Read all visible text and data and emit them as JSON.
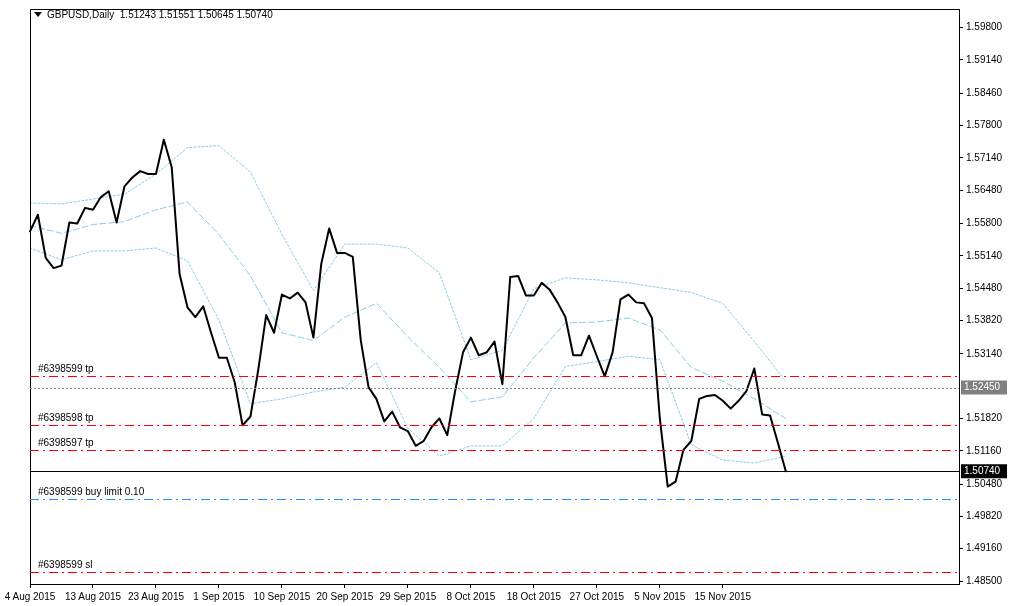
{
  "chart_data": {
    "type": "line",
    "title": "GBPUSD,Daily  1.51243 1.51551 1.50645 1.50740",
    "categories": [
      "4 Aug 2015",
      null,
      null,
      null,
      null,
      null,
      null,
      null,
      "13 Aug 2015",
      null,
      null,
      null,
      null,
      null,
      null,
      null,
      "23 Aug 2015",
      null,
      null,
      null,
      null,
      null,
      null,
      null,
      "1 Sep 2015",
      null,
      null,
      null,
      null,
      null,
      null,
      null,
      "10 Sep 2015",
      null,
      null,
      null,
      null,
      null,
      null,
      null,
      "20 Sep 2015",
      null,
      null,
      null,
      null,
      null,
      null,
      null,
      "29 Sep 2015",
      null,
      null,
      null,
      null,
      null,
      null,
      null,
      "8 Oct 2015",
      null,
      null,
      null,
      null,
      null,
      null,
      null,
      "18 Oct 2015",
      null,
      null,
      null,
      null,
      null,
      null,
      null,
      "27 Oct 2015",
      null,
      null,
      null,
      null,
      null,
      null,
      null,
      "5 Nov 2015",
      null,
      null,
      null,
      null,
      null,
      null,
      null,
      "15 Nov 2015",
      null,
      null,
      null,
      null,
      null,
      null,
      null,
      null,
      null,
      null,
      null,
      null,
      null,
      null,
      null,
      null,
      null,
      null,
      null,
      null,
      null,
      null,
      null,
      null,
      null,
      null,
      null,
      null,
      null,
      null
    ],
    "series": [
      {
        "color": "#000000",
        "line_style": "solid",
        "values": [
          1.5564,
          1.5598,
          1.551,
          1.5489,
          1.5494,
          1.5582,
          1.558,
          1.5612,
          1.5608,
          1.5634,
          1.5646,
          1.5582,
          1.5656,
          1.5674,
          1.5687,
          1.5681,
          1.5681,
          1.5751,
          1.5695,
          1.5477,
          1.5409,
          1.5389,
          1.5411,
          1.5357,
          1.5306,
          1.5306,
          1.5256,
          1.5168,
          1.5186,
          1.5282,
          1.5393,
          1.5357,
          1.5435,
          1.5427,
          1.5439,
          1.5419,
          1.5347,
          1.5498,
          1.557,
          1.552,
          1.552,
          1.5512,
          1.5343,
          1.5246,
          1.5222,
          1.5176,
          1.5196,
          1.5164,
          1.5156,
          1.5126,
          1.5136,
          1.5164,
          1.5182,
          1.5148,
          1.5238,
          1.5317,
          1.5347,
          1.5311,
          1.5317,
          1.5339,
          1.5252,
          1.5471,
          1.5473,
          1.5433,
          1.5433,
          1.5459,
          1.5445,
          1.5419,
          1.5389,
          1.5311,
          1.5311,
          1.5351,
          1.5309,
          1.5268,
          1.5317,
          1.5425,
          1.5435,
          1.5419,
          1.5417,
          1.5387,
          1.5182,
          1.5043,
          1.5053,
          1.5118,
          1.5136,
          1.5222,
          1.5228,
          1.523,
          1.5218,
          1.5202,
          1.5218,
          1.5238,
          1.5284,
          1.519,
          1.5188,
          1.5132,
          1.5074,
          null,
          null,
          null,
          null,
          null,
          null,
          null,
          null,
          null,
          null,
          null,
          null,
          null,
          null,
          null,
          null,
          null,
          null,
          null,
          null,
          null,
          null
        ]
      },
      {
        "color": "#87ceeb",
        "line_style": "dotted",
        "values": [
          1.5622,
          null,
          null,
          null,
          1.562,
          null,
          null,
          null,
          1.563,
          null,
          null,
          null,
          1.564,
          null,
          null,
          null,
          1.5681,
          null,
          null,
          null,
          1.5735,
          null,
          null,
          null,
          1.5739,
          null,
          null,
          null,
          1.5685,
          null,
          null,
          null,
          1.5558,
          null,
          null,
          null,
          1.5443,
          null,
          null,
          null,
          1.5538,
          null,
          null,
          null,
          1.5538,
          null,
          null,
          null,
          1.553,
          null,
          null,
          null,
          1.5479,
          null,
          null,
          null,
          1.5302,
          null,
          null,
          null,
          1.5321,
          null,
          null,
          null,
          1.5447,
          null,
          null,
          null,
          1.5469,
          null,
          null,
          null,
          1.5465,
          null,
          null,
          null,
          1.5459,
          null,
          null,
          null,
          1.5449,
          null,
          null,
          null,
          1.5439,
          null,
          null,
          null,
          1.5417,
          null,
          null,
          null,
          1.5339,
          null,
          null,
          null,
          1.5258,
          null,
          null,
          null,
          null,
          null,
          null,
          null,
          null,
          null,
          null,
          null,
          null,
          null,
          null,
          null,
          null,
          null,
          null,
          null,
          null,
          null,
          null
        ]
      },
      {
        "color": "#87ceeb",
        "line_style": "dashed",
        "values": [
          1.5576,
          null,
          null,
          null,
          1.556,
          null,
          null,
          null,
          1.5578,
          null,
          null,
          null,
          1.5584,
          null,
          null,
          null,
          1.5608,
          null,
          null,
          null,
          1.5624,
          null,
          null,
          null,
          1.5558,
          null,
          null,
          null,
          1.5473,
          null,
          null,
          null,
          1.5357,
          null,
          null,
          null,
          1.5341,
          null,
          null,
          null,
          1.5389,
          null,
          null,
          null,
          1.5417,
          null,
          null,
          null,
          1.5349,
          null,
          null,
          null,
          1.5286,
          null,
          null,
          null,
          1.5216,
          null,
          null,
          null,
          1.5226,
          null,
          null,
          null,
          1.5306,
          null,
          null,
          null,
          1.5377,
          null,
          null,
          null,
          1.5379,
          null,
          null,
          null,
          1.5387,
          null,
          null,
          null,
          1.5363,
          null,
          null,
          null,
          1.5286,
          null,
          null,
          null,
          1.5258,
          null,
          null,
          null,
          1.5222,
          null,
          null,
          null,
          1.5182,
          null,
          null,
          null,
          null,
          null,
          null,
          null,
          null,
          null,
          null,
          null,
          null,
          null,
          null,
          null,
          null,
          null,
          null,
          null,
          null,
          null,
          null
        ]
      },
      {
        "color": "#87ceeb",
        "line_style": "dotted",
        "values": [
          1.553,
          null,
          null,
          null,
          1.5506,
          null,
          null,
          null,
          1.5524,
          null,
          null,
          null,
          1.5524,
          null,
          null,
          null,
          1.553,
          null,
          null,
          null,
          1.5504,
          null,
          null,
          null,
          1.5383,
          null,
          null,
          null,
          1.5212,
          null,
          null,
          null,
          1.5222,
          null,
          null,
          null,
          1.5236,
          null,
          null,
          null,
          1.5246,
          null,
          null,
          null,
          1.5296,
          null,
          null,
          null,
          1.5162,
          null,
          null,
          null,
          1.5105,
          null,
          null,
          null,
          1.5126,
          null,
          null,
          null,
          1.5126,
          null,
          null,
          null,
          1.5182,
          null,
          null,
          null,
          1.5288,
          null,
          null,
          null,
          1.5298,
          null,
          null,
          null,
          1.5309,
          null,
          null,
          null,
          1.5302,
          null,
          null,
          null,
          1.5128,
          null,
          null,
          null,
          1.5097,
          null,
          null,
          null,
          1.5091,
          null,
          null,
          null,
          1.5105,
          null,
          null,
          null,
          null,
          null,
          null,
          null,
          null,
          null,
          null,
          null,
          null,
          null,
          null,
          null,
          null,
          null,
          null,
          null,
          null,
          null,
          null
        ]
      }
    ],
    "ylim": [
      1.4844,
      1.6018
    ],
    "yticks": [
      {
        "value": 1.485,
        "label": "1.48500"
      },
      {
        "value": 1.4916,
        "label": "1.49160"
      },
      {
        "value": 1.4982,
        "label": "1.49820"
      },
      {
        "value": 1.5048,
        "label": "1.50480"
      },
      {
        "value": 1.5116,
        "label": "1.51160"
      },
      {
        "value": 1.5182,
        "label": "1.51820"
      },
      {
        "value": 1.5314,
        "label": "1.53140"
      },
      {
        "value": 1.5382,
        "label": "1.53820"
      },
      {
        "value": 1.5448,
        "label": "1.54480"
      },
      {
        "value": 1.5514,
        "label": "1.55140"
      },
      {
        "value": 1.558,
        "label": "1.55800"
      },
      {
        "value": 1.5648,
        "label": "1.56480"
      },
      {
        "value": 1.5714,
        "label": "1.57140"
      },
      {
        "value": 1.578,
        "label": "1.57800"
      },
      {
        "value": 1.5846,
        "label": "1.58460"
      },
      {
        "value": 1.5914,
        "label": "1.59140"
      },
      {
        "value": 1.598,
        "label": "1.59800"
      }
    ],
    "ref_lines": [
      {
        "axis": "y",
        "value": 1.5268,
        "label": "#6398599 tp",
        "color": "#ff0000",
        "line_style": "dashed"
      },
      {
        "axis": "y",
        "value": 1.5245,
        "label": "1.52450",
        "color": "#808080",
        "line_style": "dotted"
      },
      {
        "axis": "y",
        "value": 1.5168,
        "label": "#6398598 tp",
        "color": "#ff0000",
        "line_style": "dashed"
      },
      {
        "axis": "y",
        "value": 1.5117,
        "label": "#6398597 tp",
        "color": "#ff0000",
        "line_style": "dashed"
      },
      {
        "axis": "y",
        "value": 1.5074,
        "label": "1.50740",
        "color": "#000000",
        "line_style": "solid"
      },
      {
        "axis": "y",
        "value": 1.5017,
        "label": "#6398599 buy limit 0.10",
        "color": "#1e90ff",
        "line_style": "dashed"
      },
      {
        "axis": "y",
        "value": 1.4868,
        "label": "#6398599 sl",
        "color": "#ff0000",
        "line_style": "dashed"
      }
    ],
    "grid": false,
    "legend": false,
    "marker": "none"
  }
}
